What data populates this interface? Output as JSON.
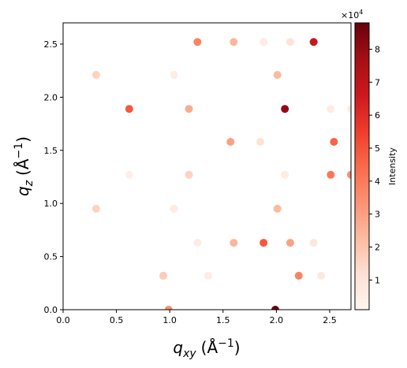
{
  "chart_data": {
    "type": "scatter",
    "xlabel_base": "q",
    "xlabel_sub": "xy",
    "xlabel_unit": "(Å",
    "xlabel_exp": "−1",
    "xlabel_close": ")",
    "ylabel_base": "q",
    "ylabel_sub": "z",
    "ylabel_unit": "(Å",
    "ylabel_exp": "−1",
    "ylabel_close": ")",
    "xlim": [
      0,
      2.7
    ],
    "ylim": [
      0,
      2.7
    ],
    "xticks": [
      "0.0",
      "0.5",
      "1.0",
      "1.5",
      "2.0",
      "2.5"
    ],
    "yticks": [
      "0.0",
      "0.5",
      "1.0",
      "1.5",
      "2.0",
      "2.5"
    ],
    "colorbar": {
      "label": "Intensity",
      "multiplier_base": "×10",
      "multiplier_exp": "4",
      "ticks": [
        "1",
        "2",
        "3",
        "4",
        "5",
        "6",
        "7",
        "8"
      ],
      "range": [
        0.1,
        8.8
      ],
      "colormap": "Reds"
    },
    "points": [
      {
        "x": 0.31,
        "y": 2.21,
        "intensity": 1.6
      },
      {
        "x": 1.04,
        "y": 2.21,
        "intensity": 0.5
      },
      {
        "x": 2.01,
        "y": 2.21,
        "intensity": 2.3
      },
      {
        "x": 1.26,
        "y": 2.52,
        "intensity": 3.8
      },
      {
        "x": 1.6,
        "y": 2.52,
        "intensity": 2.4
      },
      {
        "x": 1.88,
        "y": 2.52,
        "intensity": 0.6
      },
      {
        "x": 2.13,
        "y": 2.52,
        "intensity": 1.0
      },
      {
        "x": 2.35,
        "y": 2.52,
        "intensity": 6.8
      },
      {
        "x": 0.62,
        "y": 1.89,
        "intensity": 4.9
      },
      {
        "x": 1.18,
        "y": 1.89,
        "intensity": 2.7
      },
      {
        "x": 2.08,
        "y": 1.89,
        "intensity": 8.0
      },
      {
        "x": 2.51,
        "y": 1.89,
        "intensity": 0.6
      },
      {
        "x": 2.7,
        "y": 1.89,
        "intensity": 0.5
      },
      {
        "x": 1.57,
        "y": 1.58,
        "intensity": 3.0
      },
      {
        "x": 1.85,
        "y": 1.58,
        "intensity": 1.1
      },
      {
        "x": 2.54,
        "y": 1.58,
        "intensity": 4.6
      },
      {
        "x": 0.62,
        "y": 1.27,
        "intensity": 0.4
      },
      {
        "x": 1.18,
        "y": 1.27,
        "intensity": 1.6
      },
      {
        "x": 2.08,
        "y": 1.27,
        "intensity": 0.6
      },
      {
        "x": 2.51,
        "y": 1.27,
        "intensity": 4.1
      },
      {
        "x": 2.7,
        "y": 1.27,
        "intensity": 3.5
      },
      {
        "x": 0.31,
        "y": 0.95,
        "intensity": 1.6
      },
      {
        "x": 1.04,
        "y": 0.95,
        "intensity": 0.6
      },
      {
        "x": 2.01,
        "y": 0.95,
        "intensity": 2.3
      },
      {
        "x": 1.26,
        "y": 0.63,
        "intensity": 0.6
      },
      {
        "x": 1.6,
        "y": 0.63,
        "intensity": 2.4
      },
      {
        "x": 1.88,
        "y": 0.63,
        "intensity": 4.9
      },
      {
        "x": 2.13,
        "y": 0.63,
        "intensity": 3.0
      },
      {
        "x": 2.35,
        "y": 0.63,
        "intensity": 0.8
      },
      {
        "x": 0.94,
        "y": 0.32,
        "intensity": 1.8
      },
      {
        "x": 1.36,
        "y": 0.32,
        "intensity": 0.6
      },
      {
        "x": 2.21,
        "y": 0.32,
        "intensity": 3.8
      },
      {
        "x": 2.42,
        "y": 0.32,
        "intensity": 0.7
      },
      {
        "x": 0.99,
        "y": 0.0,
        "intensity": 3.5
      },
      {
        "x": 1.99,
        "y": 0.0,
        "intensity": 8.8
      }
    ]
  }
}
